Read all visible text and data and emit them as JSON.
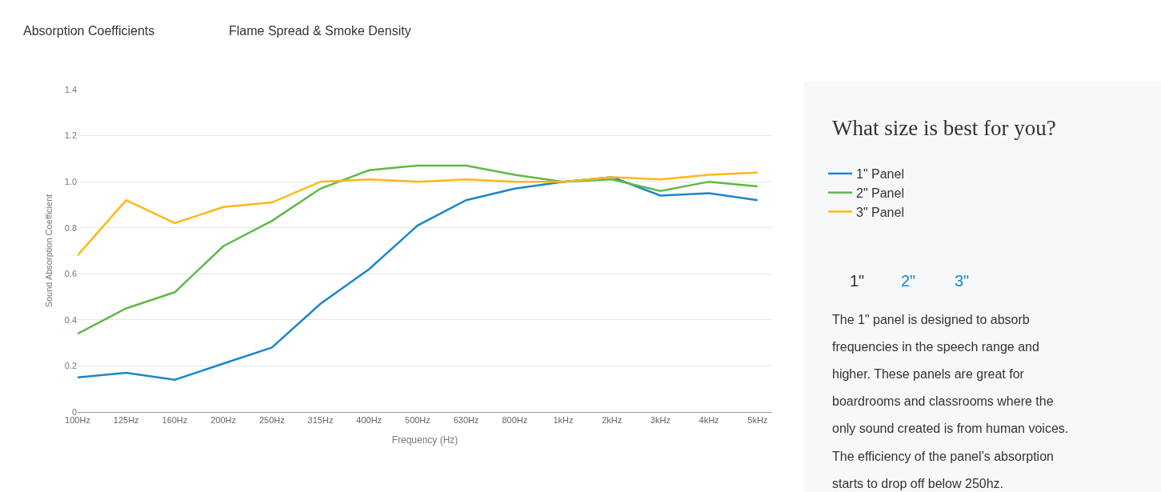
{
  "chart_data": {
    "type": "line",
    "xlabel": "Frequency (Hz)",
    "ylabel": "Sound Absorption Coefficient",
    "categories": [
      "100Hz",
      "125Hz",
      "160Hz",
      "200Hz",
      "250Hz",
      "315Hz",
      "400Hz",
      "500Hz",
      "630Hz",
      "800Hz",
      "1kHz",
      "2kHz",
      "3kHz",
      "4kHz",
      "5kHz"
    ],
    "series": [
      {
        "name": "1\" Panel",
        "color": "#1b87c9",
        "values": [
          0.15,
          0.17,
          0.14,
          0.21,
          0.28,
          0.47,
          0.62,
          0.81,
          0.92,
          0.97,
          1.0,
          1.02,
          0.94,
          0.95,
          0.92
        ]
      },
      {
        "name": "2\" Panel",
        "color": "#5fb946",
        "values": [
          0.34,
          0.45,
          0.52,
          0.72,
          0.83,
          0.97,
          1.05,
          1.07,
          1.07,
          1.03,
          1.0,
          1.01,
          0.96,
          1.0,
          0.98
        ]
      },
      {
        "name": "3\" Panel",
        "color": "#fdb913",
        "values": [
          0.68,
          0.92,
          0.82,
          0.89,
          0.91,
          1.0,
          1.01,
          1.0,
          1.01,
          1.0,
          1.0,
          1.02,
          1.01,
          1.03,
          1.04
        ]
      }
    ],
    "ylim": [
      0,
      1.4
    ],
    "yticks": [
      0,
      0.2,
      0.4,
      0.6,
      0.8,
      {
        "value": 1,
        "label": "1.0"
      },
      1.2,
      1.4
    ],
    "grid": "y",
    "legend": "right",
    "marker": "none",
    "line_style": "solid",
    "annotations": [
      "Absorption Coefficients",
      "Flame Spread & Smoke Density",
      "What size is best for you?",
      "1\"",
      "2\"",
      "3\"",
      "The 1\" panel is designed to absorb",
      "frequencies in the speech range and",
      "higher. These panels are great for",
      "boardrooms and classrooms where the",
      "only sound created is from human voices.",
      "The efficiency of the panel’s absorption",
      "starts to drop off below 250hz."
    ]
  }
}
